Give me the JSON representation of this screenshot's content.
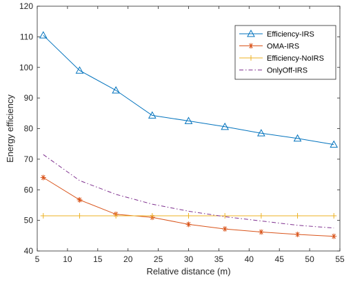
{
  "chart_data": {
    "type": "line",
    "xlabel": "Relative distance (m)",
    "ylabel": "Energy efficiency",
    "xlim": [
      5,
      55
    ],
    "ylim": [
      40,
      120
    ],
    "xticks": [
      "5",
      "10",
      "15",
      "20",
      "25",
      "30",
      "35",
      "40",
      "45",
      "50",
      "55"
    ],
    "yticks": [
      "40",
      "50",
      "60",
      "70",
      "80",
      "90",
      "100",
      "110",
      "120"
    ],
    "grid": false,
    "legend_position": "top-right",
    "x": [
      6,
      12,
      18,
      24,
      30,
      36,
      42,
      48,
      54
    ],
    "series": [
      {
        "name": "Efficiency-IRS",
        "color": "#0072BD",
        "marker": "triangle",
        "line_style": "solid",
        "values": [
          110.5,
          99.0,
          92.5,
          84.3,
          82.5,
          80.6,
          78.5,
          76.8,
          74.8
        ]
      },
      {
        "name": "OMA-IRS",
        "color": "#D95319",
        "marker": "asterisk",
        "line_style": "solid",
        "values": [
          64.0,
          56.7,
          52.0,
          51.0,
          48.7,
          47.2,
          46.2,
          45.4,
          44.8
        ]
      },
      {
        "name": "Efficiency-NoIRS",
        "color": "#EDB120",
        "marker": "plus",
        "line_style": "solid",
        "values": [
          51.5,
          51.5,
          51.5,
          51.5,
          51.5,
          51.5,
          51.5,
          51.5,
          51.5
        ]
      },
      {
        "name": "OnlyOff-IRS",
        "color": "#7E2F8E",
        "marker": "none",
        "line_style": "dash-dot",
        "values": [
          71.5,
          63.0,
          58.5,
          55.3,
          53.0,
          51.2,
          49.8,
          48.4,
          47.5
        ]
      }
    ]
  }
}
